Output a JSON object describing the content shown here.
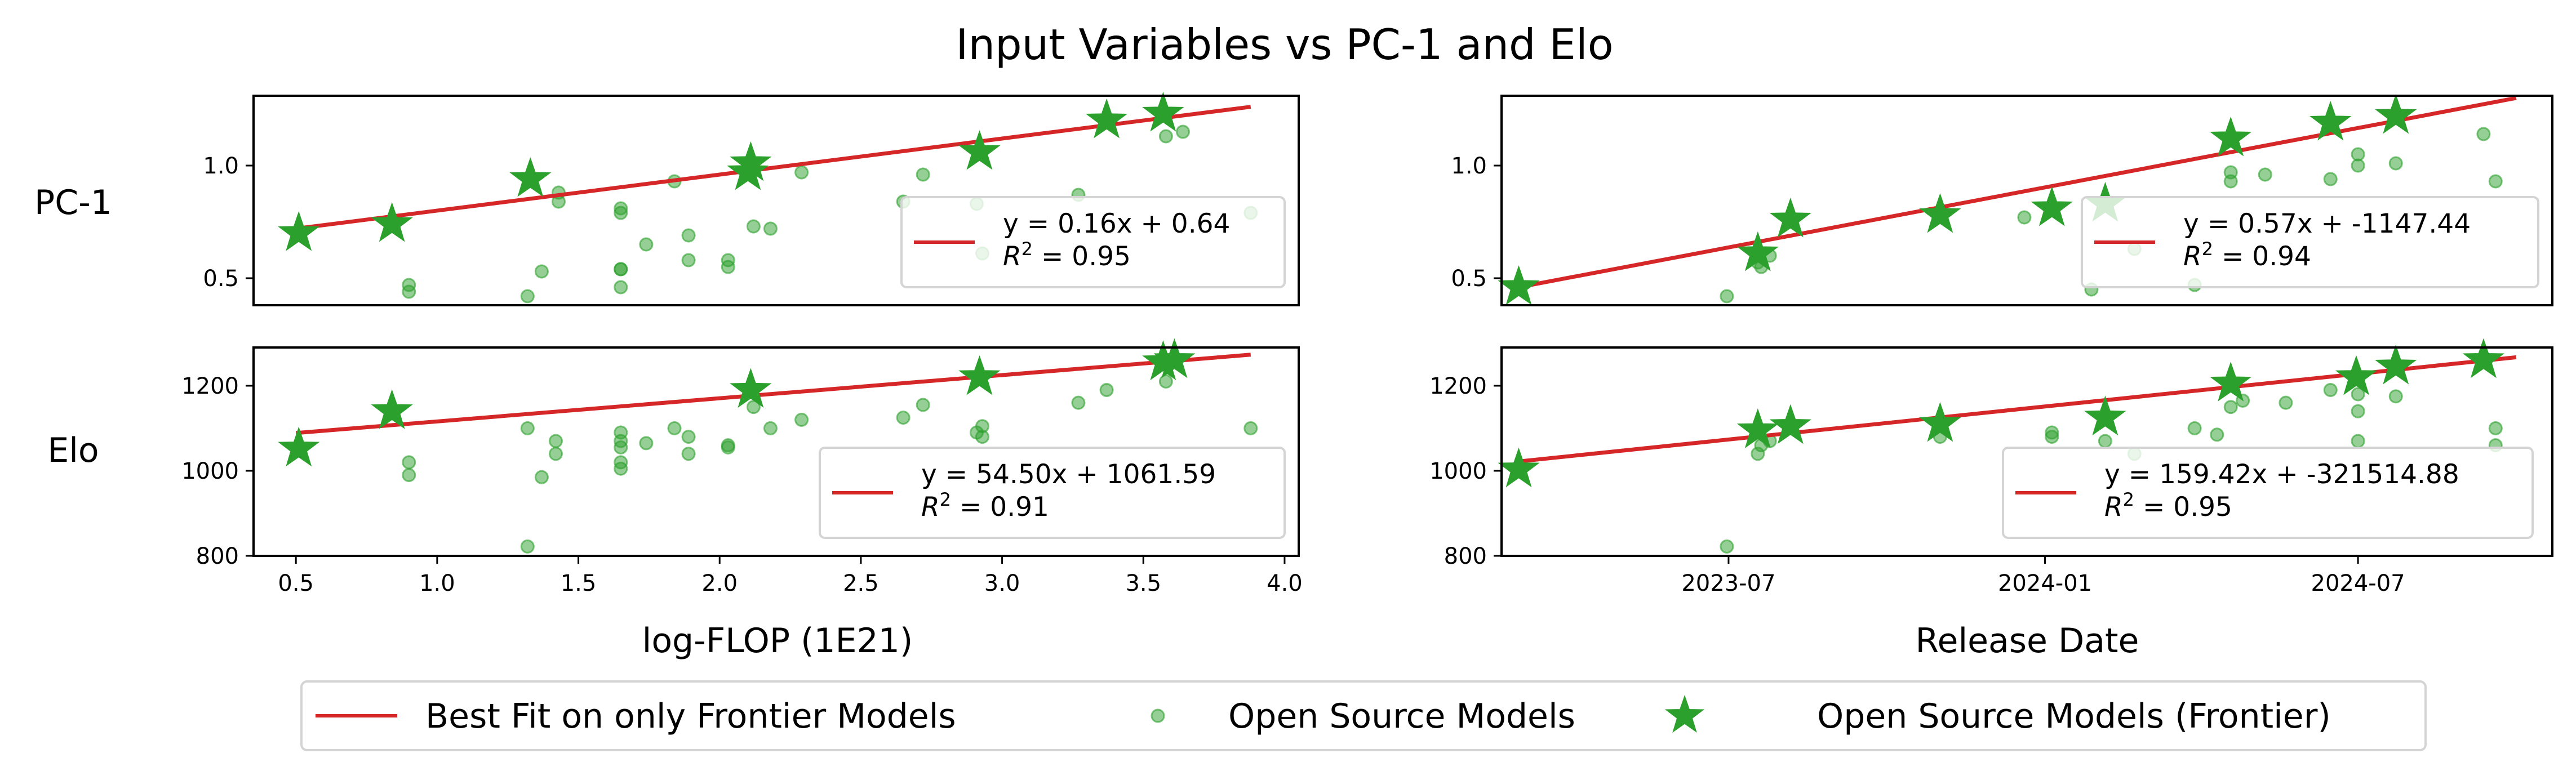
{
  "chart_data": {
    "title": "Input Variables vs PC-1 and Elo",
    "colors": {
      "fit_line": "#d62728",
      "frontier": "#2ca02c",
      "open_source": "#2ca02c"
    },
    "legend": {
      "position": "bottom-center",
      "entries": [
        "Best Fit on only Frontier Models",
        "Open Source Models",
        "Open Source Models (Frontier)"
      ]
    },
    "row_labels": [
      "PC-1",
      "Elo"
    ],
    "panels": [
      {
        "id": "flop-pc1",
        "type": "scatter",
        "row_label": "PC-1",
        "x_scale": "linear",
        "xlim": [
          0.35,
          4.05
        ],
        "ylim": [
          0.38,
          1.31
        ],
        "yticks": [
          0.5,
          1.0
        ],
        "ytick_labels": [
          "0.5",
          "1.0"
        ],
        "xticks": [],
        "xtick_labels": [],
        "fit": {
          "slope": 0.16,
          "intercept": 0.64,
          "x_range": [
            0.5,
            3.88
          ]
        },
        "legend_text": [
          "y = 0.16x + 0.64",
          "R",
          "2",
          " = 0.95"
        ],
        "open_source_points": [
          [
            0.9,
            0.47
          ],
          [
            0.9,
            0.44
          ],
          [
            1.32,
            0.42
          ],
          [
            1.37,
            0.53
          ],
          [
            1.43,
            0.88
          ],
          [
            1.43,
            0.84
          ],
          [
            1.65,
            0.81
          ],
          [
            1.65,
            0.79
          ],
          [
            1.65,
            0.54
          ],
          [
            1.65,
            0.54
          ],
          [
            1.65,
            0.46
          ],
          [
            1.74,
            0.65
          ],
          [
            1.84,
            0.93
          ],
          [
            1.89,
            0.69
          ],
          [
            1.89,
            0.58
          ],
          [
            2.03,
            0.58
          ],
          [
            2.03,
            0.55
          ],
          [
            2.12,
            0.73
          ],
          [
            2.18,
            0.72
          ],
          [
            2.29,
            0.97
          ],
          [
            2.65,
            0.84
          ],
          [
            2.72,
            0.96
          ],
          [
            2.91,
            0.83
          ],
          [
            2.93,
            0.61
          ],
          [
            3.27,
            0.87
          ],
          [
            3.58,
            1.13
          ],
          [
            3.64,
            1.15
          ],
          [
            3.88,
            0.79
          ]
        ],
        "frontier_points": [
          [
            0.51,
            0.7
          ],
          [
            0.84,
            0.74
          ],
          [
            1.33,
            0.94
          ],
          [
            2.1,
            0.97
          ],
          [
            2.11,
            1.01
          ],
          [
            2.92,
            1.06
          ],
          [
            3.37,
            1.2
          ],
          [
            3.57,
            1.23
          ]
        ]
      },
      {
        "id": "date-pc1",
        "type": "scatter",
        "row_label": "",
        "x_scale": "date",
        "xlim": [
          "2023-02-19",
          "2024-10-22"
        ],
        "ylim": [
          0.38,
          1.31
        ],
        "yticks": [
          0.5,
          1.0
        ],
        "ytick_labels": [
          "0.5",
          "1.0"
        ],
        "xticks": [],
        "xtick_labels": [],
        "fit": {
          "x_range": [
            "2023-03-01",
            "2024-10-01"
          ],
          "y_range": [
            0.46,
            1.3
          ]
        },
        "legend_text": [
          "y = 0.57x + -1147.44",
          "R",
          "2",
          " = 0.94"
        ],
        "open_source_points": [
          [
            "2023-06-30",
            0.42
          ],
          [
            "2023-07-18",
            0.57
          ],
          [
            "2023-07-20",
            0.55
          ],
          [
            "2023-07-25",
            0.6
          ],
          [
            "2023-11-01",
            0.79
          ],
          [
            "2023-12-20",
            0.77
          ],
          [
            "2024-01-28",
            0.45
          ],
          [
            "2024-02-22",
            0.63
          ],
          [
            "2024-03-28",
            0.47
          ],
          [
            "2024-04-18",
            0.97
          ],
          [
            "2024-04-18",
            0.93
          ],
          [
            "2024-05-08",
            0.96
          ],
          [
            "2024-06-15",
            0.94
          ],
          [
            "2024-07-01",
            1.05
          ],
          [
            "2024-07-01",
            1.0
          ],
          [
            "2024-07-23",
            1.01
          ],
          [
            "2024-09-12",
            1.14
          ],
          [
            "2024-09-19",
            0.93
          ]
        ],
        "frontier_points": [
          [
            "2023-03-01",
            0.46
          ],
          [
            "2023-07-18",
            0.61
          ],
          [
            "2023-08-06",
            0.76
          ],
          [
            "2023-11-01",
            0.78
          ],
          [
            "2024-01-05",
            0.81
          ],
          [
            "2024-02-05",
            0.83
          ],
          [
            "2024-04-18",
            1.12
          ],
          [
            "2024-06-15",
            1.19
          ],
          [
            "2024-07-23",
            1.22
          ]
        ]
      },
      {
        "id": "flop-elo",
        "type": "scatter",
        "row_label": "Elo",
        "x_scale": "linear",
        "xlim": [
          0.35,
          4.05
        ],
        "ylim": [
          800,
          1290
        ],
        "yticks": [
          800,
          1000,
          1200
        ],
        "ytick_labels": [
          "800",
          "1000",
          "1200"
        ],
        "xticks": [
          0.5,
          1.0,
          1.5,
          2.0,
          2.5,
          3.0,
          3.5,
          4.0
        ],
        "xtick_labels": [
          "0.5",
          "1.0",
          "1.5",
          "2.0",
          "2.5",
          "3.0",
          "3.5",
          "4.0"
        ],
        "xlabel": "log-FLOP (1E21)",
        "fit": {
          "slope": 54.5,
          "intercept": 1061.59,
          "x_range": [
            0.5,
            3.88
          ]
        },
        "legend_text": [
          "y = 54.50x + 1061.59",
          "R",
          "2",
          " = 0.91"
        ],
        "open_source_points": [
          [
            0.9,
            1020
          ],
          [
            0.9,
            990
          ],
          [
            1.32,
            1100
          ],
          [
            1.32,
            822
          ],
          [
            1.37,
            985
          ],
          [
            1.42,
            1070
          ],
          [
            1.42,
            1040
          ],
          [
            1.65,
            1090
          ],
          [
            1.65,
            1070
          ],
          [
            1.65,
            1055
          ],
          [
            1.65,
            1020
          ],
          [
            1.65,
            1005
          ],
          [
            1.74,
            1065
          ],
          [
            1.84,
            1100
          ],
          [
            1.89,
            1080
          ],
          [
            1.89,
            1040
          ],
          [
            2.03,
            1060
          ],
          [
            2.03,
            1055
          ],
          [
            2.12,
            1150
          ],
          [
            2.18,
            1100
          ],
          [
            2.29,
            1120
          ],
          [
            2.65,
            1125
          ],
          [
            2.72,
            1155
          ],
          [
            2.91,
            1090
          ],
          [
            2.93,
            1080
          ],
          [
            2.93,
            1105
          ],
          [
            3.27,
            1160
          ],
          [
            3.37,
            1190
          ],
          [
            3.58,
            1210
          ],
          [
            3.88,
            1100
          ]
        ],
        "frontier_points": [
          [
            0.51,
            1052
          ],
          [
            0.84,
            1140
          ],
          [
            2.11,
            1190
          ],
          [
            2.92,
            1220
          ],
          [
            3.57,
            1255
          ],
          [
            3.61,
            1260
          ]
        ]
      },
      {
        "id": "date-elo",
        "type": "scatter",
        "row_label": "",
        "x_scale": "date",
        "xlim": [
          "2023-02-19",
          "2024-10-22"
        ],
        "ylim": [
          800,
          1290
        ],
        "yticks": [
          800,
          1000,
          1200
        ],
        "ytick_labels": [
          "800",
          "1000",
          "1200"
        ],
        "xticks": [
          "2023-07-01",
          "2024-01-01",
          "2024-07-01"
        ],
        "xtick_labels": [
          "2023-07",
          "2024-01",
          "2024-07"
        ],
        "xlabel": "Release Date",
        "fit": {
          "x_range": [
            "2023-03-01",
            "2024-10-01"
          ],
          "y_range": [
            1022,
            1267
          ]
        },
        "legend_text": [
          "y = 159.42x + -321514.88",
          "R",
          "2",
          " = 0.95"
        ],
        "open_source_points": [
          [
            "2023-06-30",
            822
          ],
          [
            "2023-07-18",
            1040
          ],
          [
            "2023-07-20",
            1060
          ],
          [
            "2023-07-25",
            1070
          ],
          [
            "2023-11-01",
            1080
          ],
          [
            "2024-01-05",
            1090
          ],
          [
            "2024-01-05",
            1080
          ],
          [
            "2024-02-05",
            1070
          ],
          [
            "2024-02-22",
            1040
          ],
          [
            "2024-03-28",
            1100
          ],
          [
            "2024-04-10",
            1085
          ],
          [
            "2024-04-18",
            1150
          ],
          [
            "2024-04-25",
            1165
          ],
          [
            "2024-05-20",
            1160
          ],
          [
            "2024-06-15",
            1190
          ],
          [
            "2024-07-01",
            1180
          ],
          [
            "2024-07-01",
            1140
          ],
          [
            "2024-07-01",
            1070
          ],
          [
            "2024-07-23",
            1175
          ],
          [
            "2024-09-19",
            1100
          ],
          [
            "2024-09-19",
            1060
          ]
        ],
        "frontier_points": [
          [
            "2023-03-01",
            1003
          ],
          [
            "2023-07-18",
            1095
          ],
          [
            "2023-08-06",
            1105
          ],
          [
            "2023-11-01",
            1110
          ],
          [
            "2024-02-05",
            1125
          ],
          [
            "2024-04-18",
            1205
          ],
          [
            "2024-06-30",
            1220
          ],
          [
            "2024-07-23",
            1245
          ],
          [
            "2024-09-12",
            1260
          ]
        ]
      }
    ]
  }
}
